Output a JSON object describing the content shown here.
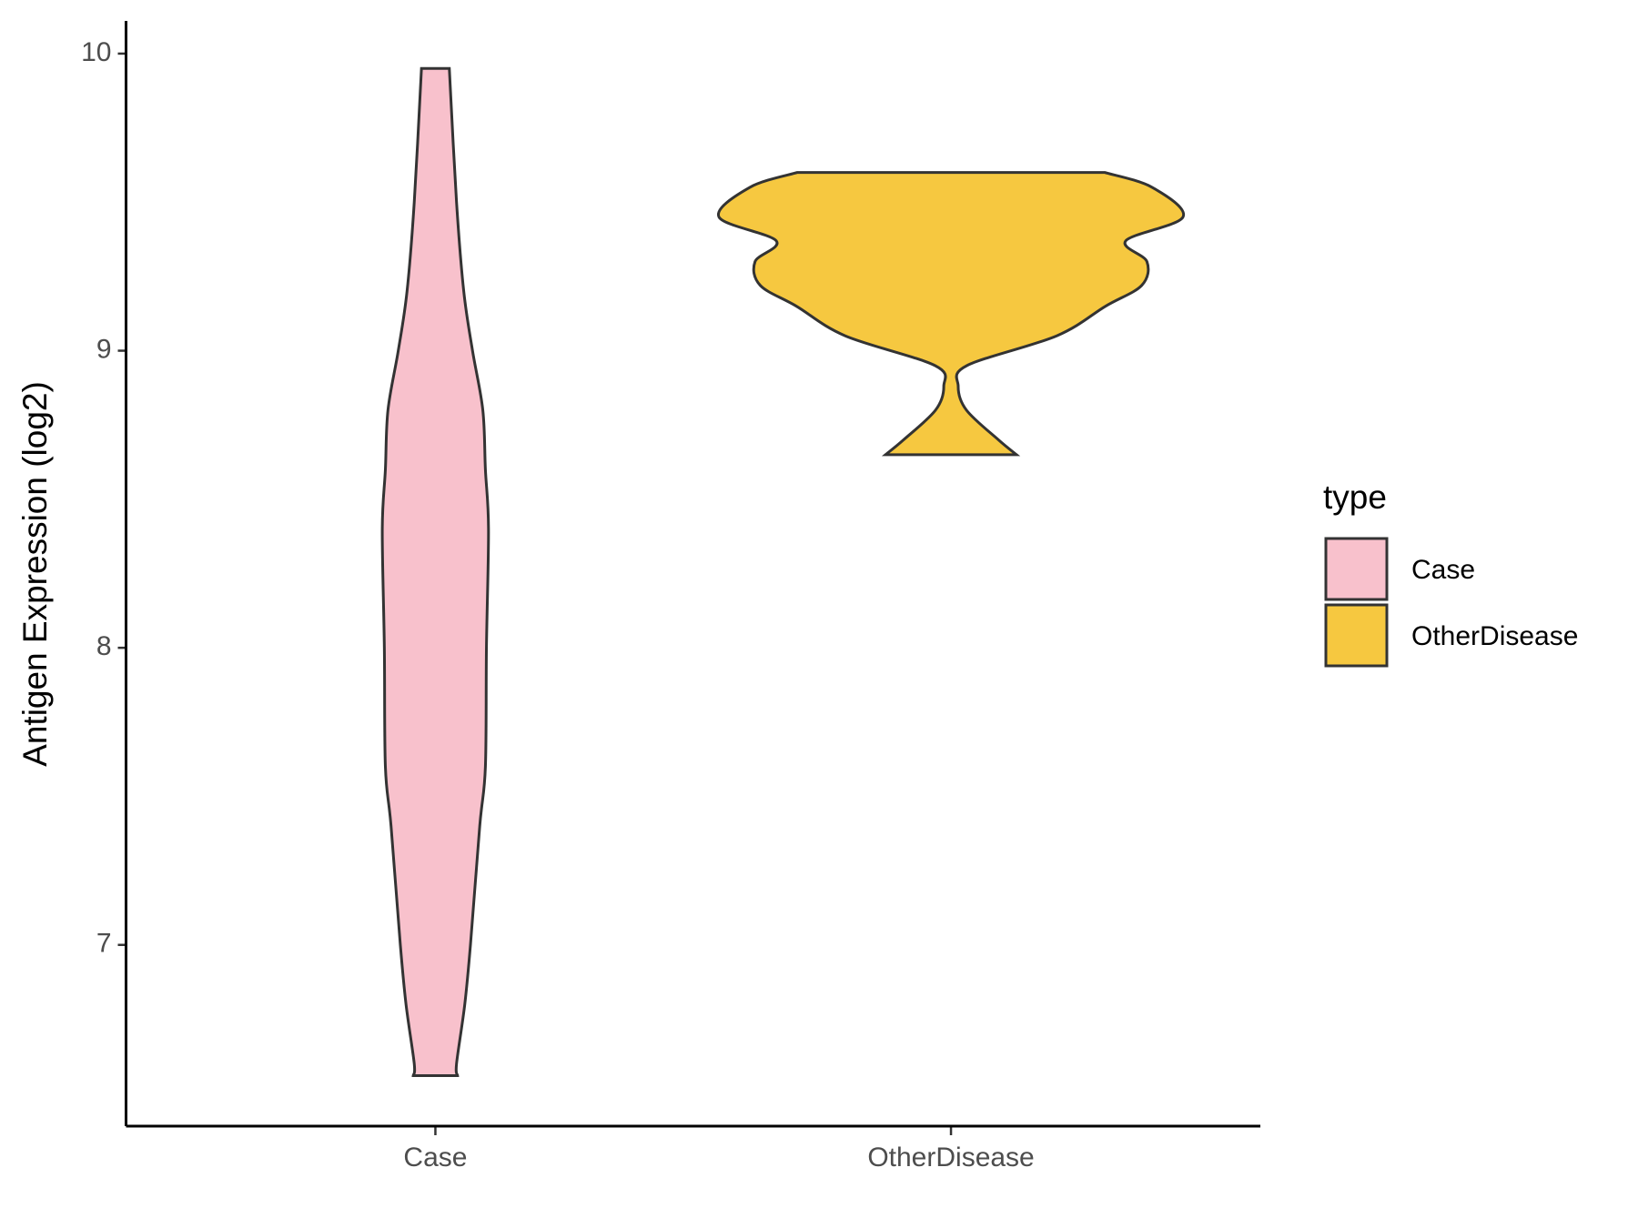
{
  "chart_data": {
    "type": "violin",
    "y_label": "Antigen Expression (log2)",
    "categories": [
      "Case",
      "OtherDisease"
    ],
    "xlim": [
      0.4,
      2.6
    ],
    "ylim": [
      6.39,
      10.11
    ],
    "yticks": [
      7,
      8,
      9,
      10
    ],
    "legend_title": "type",
    "legend_position": "right",
    "series": [
      {
        "name": "Case",
        "color": "#F8C1CC",
        "y": [
          9.95,
          9.5,
          9.2,
          9.0,
          8.8,
          8.6,
          8.4,
          8.0,
          7.6,
          7.4,
          7.0,
          6.8,
          6.6,
          6.56
        ],
        "width": [
          0.027,
          0.041,
          0.055,
          0.072,
          0.092,
          0.097,
          0.103,
          0.099,
          0.097,
          0.086,
          0.068,
          0.057,
          0.041,
          0.043
        ]
      },
      {
        "name": "OtherDisease",
        "color": "#F6C840",
        "y": [
          9.6,
          9.55,
          9.45,
          9.37,
          9.3,
          9.22,
          9.15,
          9.05,
          8.95,
          8.88,
          8.8,
          8.7,
          8.65
        ],
        "width": [
          0.298,
          0.39,
          0.45,
          0.339,
          0.38,
          0.37,
          0.3,
          0.205,
          0.031,
          0.014,
          0.03,
          0.092,
          0.127
        ]
      }
    ]
  }
}
